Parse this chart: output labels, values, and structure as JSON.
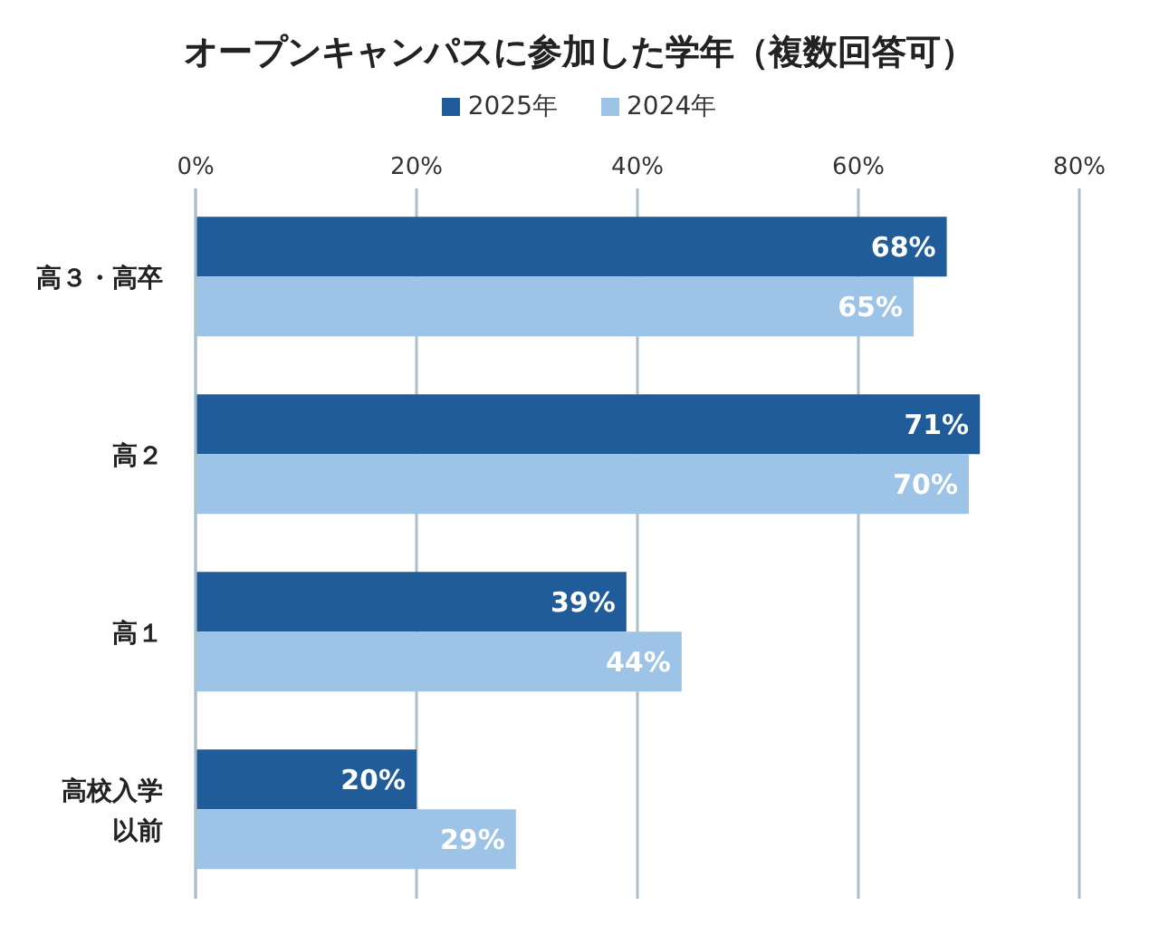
{
  "chart_data": {
    "type": "bar",
    "orientation": "horizontal",
    "title": "オープンキャンパスに参加した学年（複数回答可）",
    "categories": [
      "高３・高卒",
      "高２",
      "高１",
      "高校入学以前"
    ],
    "series": [
      {
        "name": "2025年",
        "color": "#1f5c99",
        "values": [
          68,
          71,
          39,
          20
        ],
        "value_labels": [
          "68%",
          "71%",
          "39%",
          "20%"
        ]
      },
      {
        "name": "2024年",
        "color": "#9dc3e6",
        "values": [
          65,
          70,
          44,
          29
        ],
        "value_labels": [
          "65%",
          "70%",
          "44%",
          "29%"
        ]
      }
    ],
    "xlim": [
      0,
      80
    ],
    "xticks": [
      {
        "value": 0,
        "label": "0%"
      },
      {
        "value": 20,
        "label": "20%"
      },
      {
        "value": 40,
        "label": "40%"
      },
      {
        "value": 60,
        "label": "60%"
      },
      {
        "value": 80,
        "label": "80%"
      }
    ],
    "grid": "x",
    "legend": "top"
  }
}
